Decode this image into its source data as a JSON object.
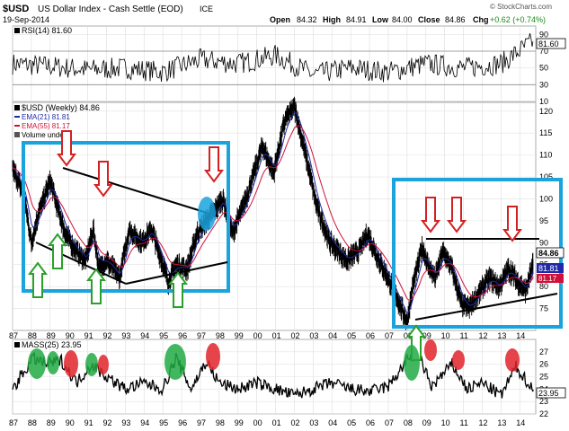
{
  "header": {
    "symbol": "$USD",
    "name": "US Dollar Index - Cash Settle (EOD)",
    "exchange": "ICE",
    "watermark": "© StockCharts.com",
    "date": "19-Sep-2014",
    "open_label": "Open",
    "open": "84.32",
    "high_label": "High",
    "high": "84.91",
    "low_label": "Low",
    "low": "84.00",
    "close_label": "Close",
    "close": "84.86",
    "chg_label": "Chg",
    "chg": "+0.62 (+0.74%)"
  },
  "colors": {
    "price": "#000000",
    "ema21": "#1f2aa8",
    "ema55": "#d0103a",
    "box": "#1aa3dd",
    "arrow_up": "#2aa02a",
    "arrow_down": "#d42020",
    "highlight_blue": "#1aa3dd",
    "green_ellipse": "#22aa44",
    "red_ellipse": "#e0252a"
  },
  "chart_data": [
    {
      "type": "line",
      "panel": "rsi",
      "label": "RSI(14) 81.60",
      "ylim": [
        10,
        100
      ],
      "ticks": [
        "90",
        "70",
        "50",
        "30",
        "10"
      ],
      "reference_lines": [
        70,
        30
      ],
      "last_value": "81.60",
      "x": [
        1987,
        1989,
        1991,
        1993,
        1995,
        1997,
        1999,
        2001,
        2003,
        2005,
        2007,
        2009,
        2011,
        2013,
        2014.7
      ],
      "values": [
        55,
        52,
        48,
        50,
        45,
        60,
        55,
        65,
        42,
        50,
        45,
        55,
        50,
        55,
        81.6
      ]
    },
    {
      "type": "line",
      "panel": "price",
      "title": "$USD (Weekly) 84.86",
      "legend": [
        "EMA(21) 81.81",
        "EMA(55) 81.17",
        "Volume undef"
      ],
      "ylim": [
        70,
        122
      ],
      "yticks": [
        "120",
        "115",
        "110",
        "105",
        "100",
        "95",
        "90",
        "85",
        "80",
        "75"
      ],
      "last_value": "84.86",
      "ema21_last": "81.81",
      "ema55_last": "81.17",
      "x": [
        1987.0,
        1987.6,
        1988.0,
        1988.4,
        1989.0,
        1989.4,
        1989.8,
        1990.4,
        1990.9,
        1991.3,
        1991.6,
        1992.0,
        1992.7,
        1993.2,
        1993.9,
        1994.4,
        1995.3,
        1995.7,
        1996.3,
        1996.8,
        1997.5,
        1998.2,
        1998.7,
        1999.5,
        2000.3,
        2000.9,
        2001.5,
        2002.0,
        2002.6,
        2003.2,
        2003.9,
        2004.8,
        2005.4,
        2005.9,
        2006.5,
        2007.2,
        2008.0,
        2008.3,
        2008.8,
        2009.1,
        2009.5,
        2009.9,
        2010.4,
        2010.9,
        2011.3,
        2011.9,
        2012.4,
        2012.9,
        2013.4,
        2013.9,
        2014.3,
        2014.7
      ],
      "values": [
        107,
        101,
        90,
        97,
        104,
        98,
        92,
        88,
        86,
        93,
        84,
        86,
        82,
        93,
        90,
        93,
        81,
        85,
        84,
        92,
        96,
        100,
        92,
        101,
        112,
        106,
        118,
        121,
        110,
        98,
        90,
        86,
        88,
        92,
        86,
        80,
        72,
        80,
        89,
        85,
        82,
        88,
        84,
        76,
        75,
        79,
        82,
        80,
        84,
        81,
        79,
        84.86
      ],
      "series_extra": [
        "EMA(21)",
        "EMA(55)"
      ]
    },
    {
      "type": "line",
      "panel": "mass",
      "label": "MASS(25) 23.95",
      "ylim": [
        22,
        28
      ],
      "yticks": [
        "27",
        "26",
        "25",
        "24",
        "23",
        "22"
      ],
      "last_value": "23.95",
      "x": [
        1987,
        1988.1,
        1988.8,
        1989.6,
        1990.4,
        1991.2,
        1992,
        1993,
        1994,
        1995,
        1995.7,
        1996.5,
        1997.3,
        1998,
        1999,
        2000,
        2001,
        2002,
        2003,
        2004,
        2005,
        2006,
        2007,
        2008.1,
        2008.6,
        2009.3,
        2010.4,
        2011.2,
        2012,
        2013,
        2013.8,
        2014.7
      ],
      "values": [
        24,
        26.5,
        26,
        26.3,
        24.5,
        26,
        25,
        24,
        24.5,
        24,
        26.5,
        24,
        26.2,
        24.5,
        24,
        24.5,
        24,
        23.5,
        24,
        24.5,
        24,
        23.8,
        24.2,
        26.5,
        26.8,
        24.2,
        26,
        24,
        24.5,
        23.5,
        25.8,
        23.95
      ]
    }
  ],
  "xaxis_labels": [
    "87",
    "88",
    "89",
    "90",
    "91",
    "92",
    "93",
    "94",
    "95",
    "96",
    "97",
    "98",
    "99",
    "00",
    "01",
    "02",
    "03",
    "04",
    "05",
    "06",
    "07",
    "08",
    "09",
    "10",
    "11",
    "12",
    "13",
    "14"
  ]
}
